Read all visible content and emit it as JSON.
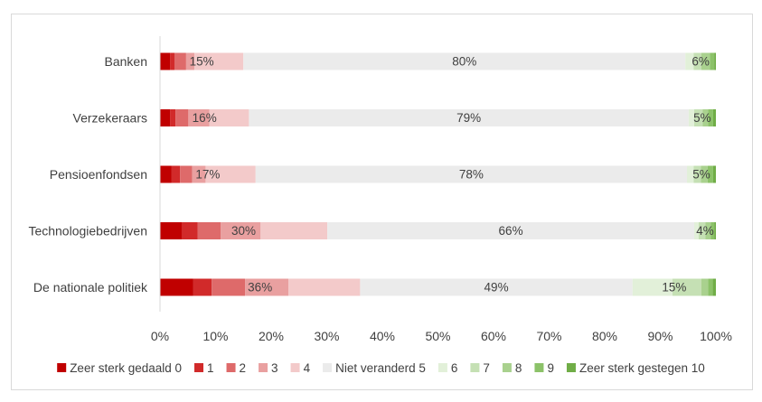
{
  "chart_data": {
    "type": "bar",
    "orientation": "horizontal",
    "stacked": true,
    "title": "",
    "xlabel": "",
    "ylabel": "",
    "xlim": [
      0,
      100
    ],
    "grid": false,
    "legend": "bottom",
    "categories": [
      "Banken",
      "Verzekeraars",
      "Pensioenfondsen",
      "Technologiebedrijven",
      "De nationale politiek"
    ],
    "x_tick_labels": [
      "0%",
      "10%",
      "20%",
      "30%",
      "40%",
      "50%",
      "60%",
      "70%",
      "80%",
      "90%",
      "100%"
    ],
    "series": [
      {
        "name": "Zeer sterk gedaald 0",
        "color": "#C00000",
        "values": [
          1.8,
          1.8,
          2.1,
          3.9,
          6.0
        ]
      },
      {
        "name": "1",
        "color": "#D12A2A",
        "values": [
          0.8,
          1.0,
          1.5,
          2.9,
          3.3
        ]
      },
      {
        "name": "2",
        "color": "#DE6A6A",
        "values": [
          2.1,
          2.3,
          2.2,
          4.1,
          6.0
        ]
      },
      {
        "name": "3",
        "color": "#E9A0A0",
        "values": [
          1.5,
          3.8,
          2.4,
          7.2,
          7.8
        ]
      },
      {
        "name": "4",
        "color": "#F3CACA",
        "values": [
          8.8,
          7.1,
          9.0,
          12.0,
          12.9
        ]
      },
      {
        "name": "Niet veranderd 5",
        "color": "#EBEBEB",
        "values": [
          79.5,
          79.1,
          77.6,
          66.0,
          49.0
        ]
      },
      {
        "name": "6",
        "color": "#E2F0D9",
        "values": [
          1.5,
          1.0,
          1.2,
          0.8,
          7.2
        ]
      },
      {
        "name": "7",
        "color": "#C5E0B4",
        "values": [
          1.4,
          1.5,
          1.3,
          1.2,
          5.2
        ]
      },
      {
        "name": "8",
        "color": "#A9D18E",
        "values": [
          1.5,
          1.0,
          1.2,
          1.0,
          1.2
        ]
      },
      {
        "name": "9",
        "color": "#8CC269",
        "values": [
          0.8,
          0.9,
          1.0,
          0.6,
          0.8
        ]
      },
      {
        "name": "Zeer sterk gestegen 10",
        "color": "#70AD47",
        "values": [
          0.3,
          0.5,
          0.5,
          0.3,
          0.6
        ]
      }
    ],
    "data_labels": [
      [
        "15%",
        "80%",
        "6%"
      ],
      [
        "16%",
        "79%",
        "5%"
      ],
      [
        "17%",
        "78%",
        "5%"
      ],
      [
        "30%",
        "66%",
        "4%"
      ],
      [
        "36%",
        "49%",
        "15%"
      ]
    ]
  }
}
